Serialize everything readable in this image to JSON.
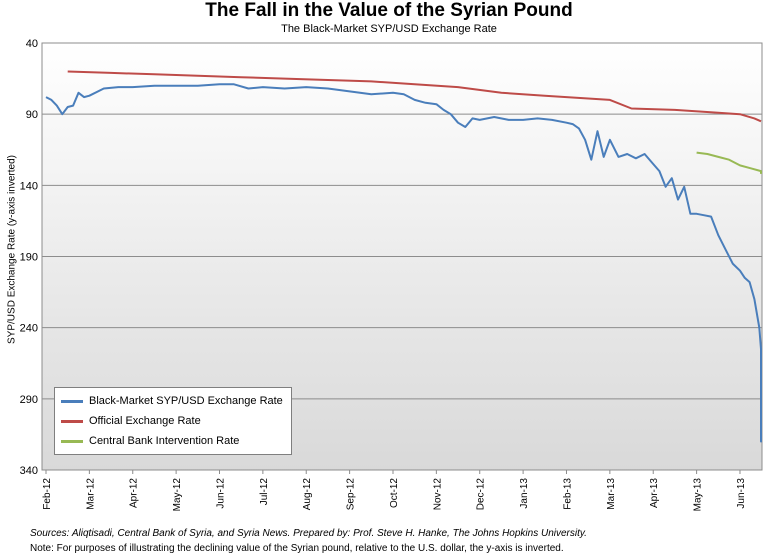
{
  "chart_data": {
    "type": "line",
    "title": "The Fall in the Value of the Syrian Pound",
    "subtitle": "The Black-Market SYP/USD Exchange Rate",
    "ylabel": "SYP/USD Exchange Rate (y-axis inverted)",
    "xlabel": "",
    "ylim": [
      40,
      340
    ],
    "y_inverted": true,
    "y_ticks": [
      40,
      90,
      140,
      190,
      240,
      290,
      340
    ],
    "grid": true,
    "legend_position": "bottom-left",
    "x_ticks": [
      "Feb-12",
      "Mar-12",
      "Apr-12",
      "May-12",
      "Jun-12",
      "Jul-12",
      "Aug-12",
      "Sep-12",
      "Oct-12",
      "Nov-12",
      "Dec-12",
      "Jan-13",
      "Feb-13",
      "Mar-13",
      "Apr-13",
      "May-13",
      "Jun-13"
    ],
    "x_range": [
      "Feb-12",
      "Jun-13 (late)"
    ],
    "series": [
      {
        "name": "Black-Market SYP/USD Exchange Rate",
        "color": "#4a7ebb",
        "points": [
          [
            "Feb-12",
            78
          ],
          [
            "Feb-12",
            80
          ],
          [
            "Feb-12",
            84
          ],
          [
            "Feb-12",
            90
          ],
          [
            "Feb-12",
            85
          ],
          [
            "Feb-12",
            84
          ],
          [
            "Feb-12",
            75
          ],
          [
            "Feb-12",
            78
          ],
          [
            "Mar-12",
            77
          ],
          [
            "Mar-12",
            72
          ],
          [
            "Mar-12",
            71
          ],
          [
            "Apr-12",
            71
          ],
          [
            "Apr-12",
            70
          ],
          [
            "May-12",
            70
          ],
          [
            "May-12",
            70
          ],
          [
            "Jun-12",
            69
          ],
          [
            "Jun-12",
            69
          ],
          [
            "Jun-12",
            72
          ],
          [
            "Jul-12",
            71
          ],
          [
            "Jul-12",
            72
          ],
          [
            "Aug-12",
            71
          ],
          [
            "Aug-12",
            72
          ],
          [
            "Sep-12",
            74
          ],
          [
            "Sep-12",
            76
          ],
          [
            "Oct-12",
            75
          ],
          [
            "Oct-12",
            76
          ],
          [
            "Oct-12",
            80
          ],
          [
            "Oct-12",
            82
          ],
          [
            "Nov-12",
            83
          ],
          [
            "Nov-12",
            87
          ],
          [
            "Nov-12",
            90
          ],
          [
            "Nov-12",
            96
          ],
          [
            "Nov-12",
            99
          ],
          [
            "Nov-12",
            93
          ],
          [
            "Dec-12",
            94
          ],
          [
            "Dec-12",
            92
          ],
          [
            "Dec-12",
            94
          ],
          [
            "Jan-13",
            94
          ],
          [
            "Jan-13",
            93
          ],
          [
            "Jan-13",
            94
          ],
          [
            "Feb-13",
            96
          ],
          [
            "Feb-13",
            97
          ],
          [
            "Feb-13",
            100
          ],
          [
            "Feb-13",
            108
          ],
          [
            "Feb-13",
            122
          ],
          [
            "Feb-13",
            102
          ],
          [
            "Feb-13",
            120
          ],
          [
            "Mar-13",
            108
          ],
          [
            "Mar-13",
            120
          ],
          [
            "Mar-13",
            118
          ],
          [
            "Mar-13",
            121
          ],
          [
            "Mar-13",
            118
          ],
          [
            "Apr-13",
            125
          ],
          [
            "Apr-13",
            130
          ],
          [
            "Apr-13",
            141
          ],
          [
            "Apr-13",
            135
          ],
          [
            "Apr-13",
            150
          ],
          [
            "Apr-13",
            141
          ],
          [
            "Apr-13",
            160
          ],
          [
            "May-13",
            160
          ],
          [
            "May-13",
            161
          ],
          [
            "May-13",
            162
          ],
          [
            "May-13",
            175
          ],
          [
            "May-13",
            185
          ],
          [
            "May-13",
            195
          ],
          [
            "Jun-13",
            200
          ],
          [
            "Jun-13",
            205
          ],
          [
            "Jun-13",
            208
          ],
          [
            "Jun-13",
            220
          ],
          [
            "Jun-13",
            240
          ],
          [
            "Jun-13",
            255
          ],
          [
            "Jun-13",
            280
          ],
          [
            "Jun-13",
            320
          ],
          [
            "Jun-13",
            265
          ]
        ]
      },
      {
        "name": "Official Exchange Rate",
        "color": "#be4b48",
        "points": [
          [
            "Feb-12",
            60
          ],
          [
            "Mar-12",
            61
          ],
          [
            "Apr-12",
            62
          ],
          [
            "May-12",
            63
          ],
          [
            "Jun-12",
            64
          ],
          [
            "Jul-12",
            65
          ],
          [
            "Aug-12",
            66
          ],
          [
            "Sep-12",
            67
          ],
          [
            "Oct-12",
            69
          ],
          [
            "Nov-12",
            71
          ],
          [
            "Dec-12",
            75
          ],
          [
            "Jan-13",
            77
          ],
          [
            "Feb-13",
            79
          ],
          [
            "Mar-13",
            80
          ],
          [
            "Mar-13",
            86
          ],
          [
            "Apr-13",
            87
          ],
          [
            "May-13",
            89
          ],
          [
            "Jun-13",
            90
          ],
          [
            "Jun-13",
            93
          ],
          [
            "Jun-13",
            95
          ]
        ]
      },
      {
        "name": "Central Bank Intervention Rate",
        "color": "#98b954",
        "points": [
          [
            "May-13",
            117
          ],
          [
            "May-13",
            118
          ],
          [
            "May-13",
            120
          ],
          [
            "May-13",
            122
          ],
          [
            "Jun-13",
            126
          ],
          [
            "Jun-13",
            128
          ],
          [
            "Jun-13",
            130
          ],
          [
            "Jun-13",
            132
          ]
        ]
      }
    ]
  },
  "footer": {
    "sources": "Sources: Aliqtisadi, Central Bank of Syria, and Syria News. Prepared by: Prof. Steve H. Hanke, The Johns Hopkins University.",
    "note": "Note: For purposes of illustrating the declining value of the  Syrian pound, relative to the U.S. dollar, the y-axis is inverted."
  }
}
